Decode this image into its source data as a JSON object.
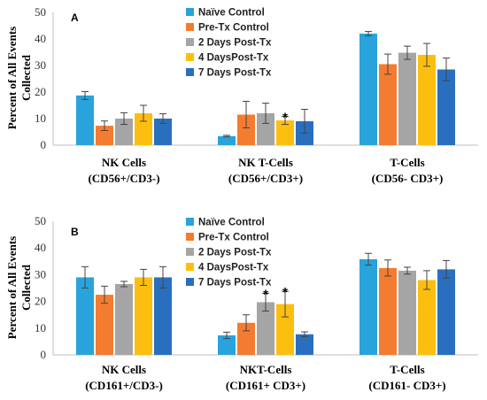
{
  "colors": {
    "Naïve Control": "#29a3db",
    "Pre-Tx Control": "#f47c30",
    "2 Days Post-Tx": "#a5a5a5",
    "4 DaysPost-Tx": "#fdbf0f",
    "7 Days Post-Tx": "#2a6fbe"
  },
  "chart_data": [
    {
      "type": "bar",
      "panel_label": "A",
      "ylabel": "Percent of All Events Collected",
      "ylabel_lines": [
        "Percent of All Events",
        "Collected"
      ],
      "ylim": [
        0,
        50
      ],
      "yticks": [
        "0",
        "10",
        "20",
        "30",
        "40",
        "50"
      ],
      "grid": false,
      "legend_position": "top-center",
      "categories": [
        "NK Cells (CD56+/CD3-)",
        "NK T-Cells (CD56+/CD3+)",
        "T-Cells (CD56- CD3+)"
      ],
      "category_lines": [
        [
          "NK Cells",
          "(CD56+/CD3-)"
        ],
        [
          "NK T-Cells",
          "(CD56+/CD3+)"
        ],
        [
          "T-Cells",
          "(CD56- CD3+)"
        ]
      ],
      "series": [
        {
          "name": "Naïve Control",
          "values": [
            18.7,
            3.4,
            42.0
          ],
          "errors": [
            1.5,
            0.3,
            0.8
          ]
        },
        {
          "name": "Pre-Tx Control",
          "values": [
            7.3,
            11.5,
            30.5
          ],
          "errors": [
            1.8,
            5.0,
            3.8
          ]
        },
        {
          "name": "2 Days Post-Tx",
          "values": [
            10.0,
            12.0,
            34.8
          ],
          "errors": [
            2.2,
            3.8,
            2.5
          ]
        },
        {
          "name": "4 DaysPost-Tx",
          "values": [
            12.0,
            9.3,
            34.0
          ],
          "errors": [
            3.0,
            1.5,
            4.3
          ]
        },
        {
          "name": "7 Days Post-Tx",
          "values": [
            10.0,
            9.0,
            28.5
          ],
          "errors": [
            1.8,
            4.5,
            4.3
          ]
        }
      ],
      "annotations": [
        {
          "text": "*",
          "category": 1,
          "series": 3
        }
      ]
    },
    {
      "type": "bar",
      "panel_label": "B",
      "ylabel": "Percent of All Events Collected",
      "ylabel_lines": [
        "Percent of All Events",
        "Collected"
      ],
      "ylim": [
        0,
        50
      ],
      "yticks": [
        "0",
        "10",
        "20",
        "30",
        "40",
        "50"
      ],
      "grid": false,
      "legend_position": "top-center",
      "categories": [
        "NK Cells (CD161+/CD3-)",
        "NKT-Cells (CD161+ CD3+)",
        "T-Cells (CD161- CD3+)"
      ],
      "category_lines": [
        [
          "NK Cells",
          "(CD161+/CD3-)"
        ],
        [
          "NKT-Cells",
          "(CD161+ CD3+)"
        ],
        [
          "T-Cells",
          "(CD161- CD3+)"
        ]
      ],
      "series": [
        {
          "name": "Naïve Control",
          "values": [
            29.0,
            7.3,
            35.8
          ],
          "errors": [
            4.0,
            1.2,
            2.2
          ]
        },
        {
          "name": "Pre-Tx Control",
          "values": [
            22.5,
            12.0,
            32.5
          ],
          "errors": [
            3.2,
            3.0,
            3.0
          ]
        },
        {
          "name": "2 Days Post-Tx",
          "values": [
            26.5,
            19.7,
            31.5
          ],
          "errors": [
            1.0,
            3.3,
            1.3
          ]
        },
        {
          "name": "4 DaysPost-Tx",
          "values": [
            29.0,
            19.0,
            28.0
          ],
          "errors": [
            3.0,
            4.8,
            3.5
          ]
        },
        {
          "name": "7 Days Post-Tx",
          "values": [
            29.0,
            7.7,
            32.0
          ],
          "errors": [
            4.0,
            0.9,
            3.3
          ]
        }
      ],
      "annotations": [
        {
          "text": "*",
          "category": 1,
          "series": 2
        },
        {
          "text": "*",
          "category": 1,
          "series": 3
        }
      ]
    }
  ]
}
